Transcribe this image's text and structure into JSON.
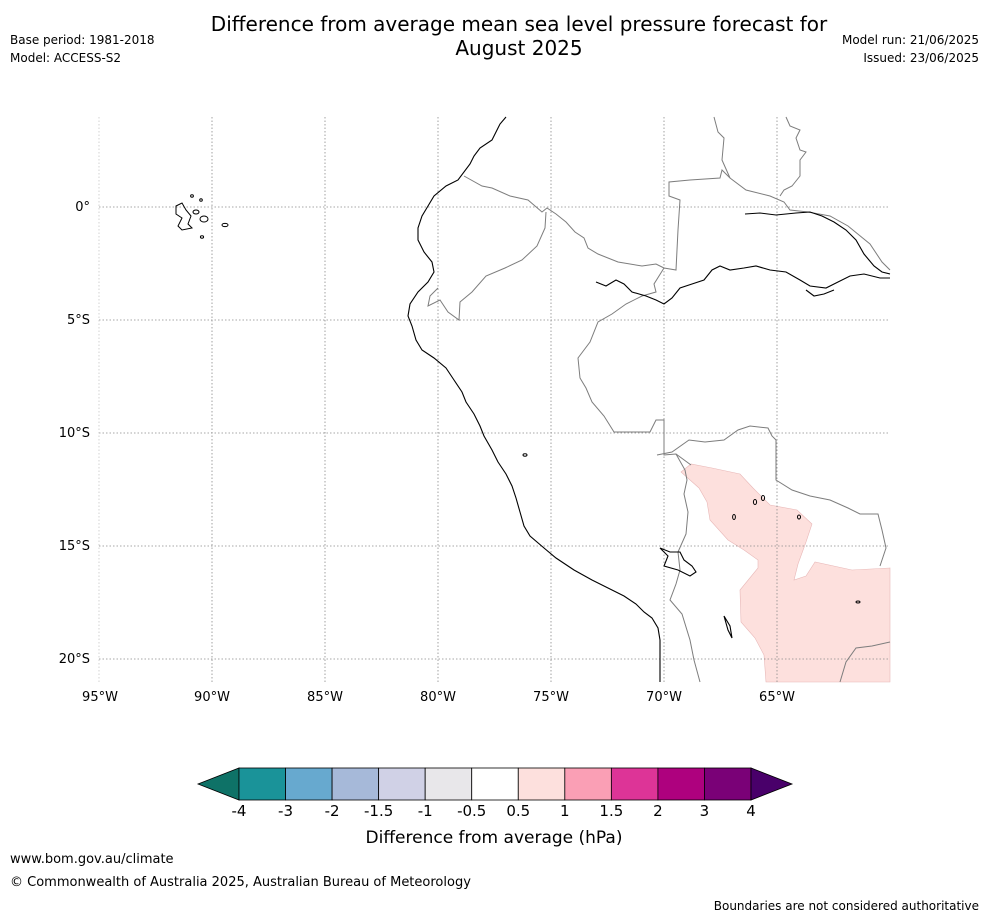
{
  "title_line1": "Difference from average mean sea level pressure forecast for",
  "title_line2": "August 2025",
  "base_period": "Base period: 1981-2018",
  "model": "Model: ACCESS-S2",
  "model_run": "Model run: 21/06/2025",
  "issued": "Issued: 23/06/2025",
  "map": {
    "lon_labels": [
      "95°W",
      "90°W",
      "85°W",
      "80°W",
      "75°W",
      "70°W",
      "65°W"
    ],
    "lat_labels": [
      "0°",
      "5°S",
      "10°S",
      "15°S",
      "20°S"
    ]
  },
  "colorbar": {
    "tick_labels": [
      "-4",
      "-3",
      "-2",
      "-1.5",
      "-1",
      "-0.5",
      "0.5",
      "1",
      "1.5",
      "2",
      "3",
      "4"
    ],
    "colors": [
      "#0e7267",
      "#1a9399",
      "#67a9cf",
      "#a6b9d9",
      "#d0d1e6",
      "#e8e7ea",
      "#ffffff",
      "#fde0dd",
      "#fa9fb5",
      "#dd3497",
      "#ae017e",
      "#7a0177",
      "#49006a"
    ],
    "label": "Difference from average (hPa)"
  },
  "footer": {
    "url": "www.bom.gov.au/climate",
    "copyright": "© Commonwealth of Australia 2025, Australian Bureau of Meteorology",
    "note": "Boundaries are not considered authoritative"
  }
}
